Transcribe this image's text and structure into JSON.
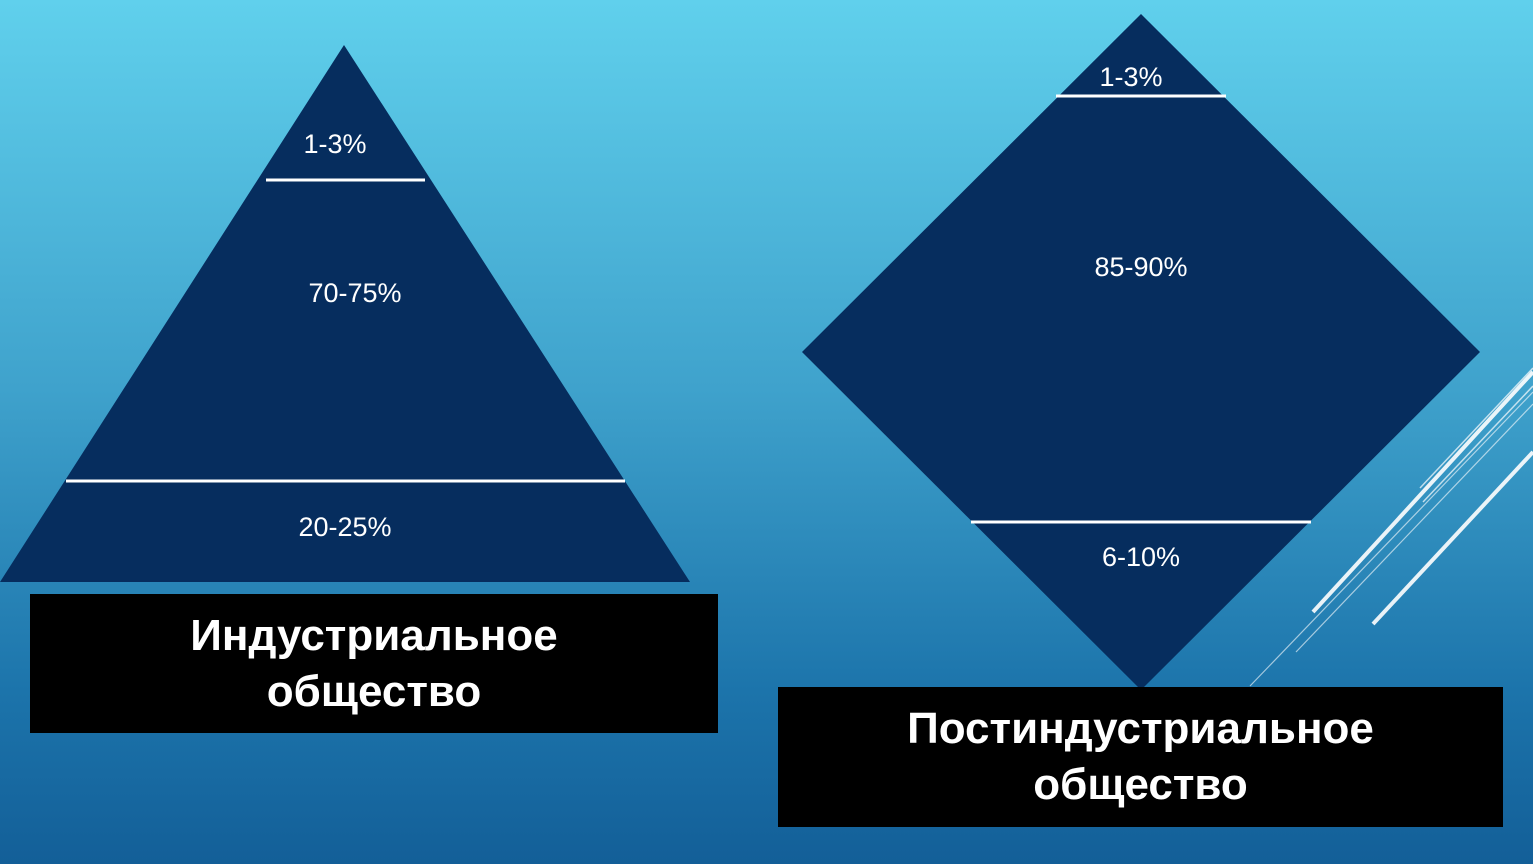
{
  "industrial": {
    "levels": {
      "top": "1-3%",
      "middle": "70-75%",
      "bottom": "20-25%"
    },
    "caption": {
      "line1": "Индустриальное",
      "line2": "общество"
    }
  },
  "postindustrial": {
    "levels": {
      "top": "1-3%",
      "middle": "85-90%",
      "bottom": "6-10%"
    },
    "caption": {
      "line1": "Постиндустриальное",
      "line2": "общество"
    }
  },
  "colors": {
    "shape_fill": "#062d5e",
    "divider": "#ffffff",
    "caption_bg": "#000000",
    "text": "#ffffff"
  }
}
